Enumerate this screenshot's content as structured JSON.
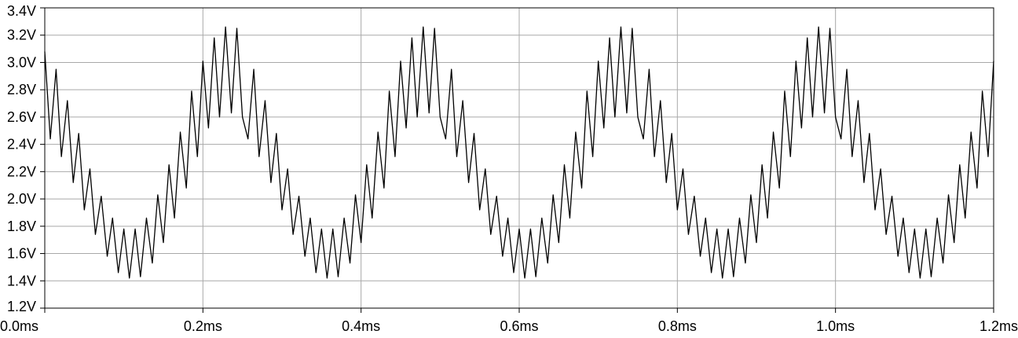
{
  "chart_data": {
    "type": "line",
    "title": "",
    "xlabel": "",
    "ylabel": "",
    "xlim": [
      0,
      1.2
    ],
    "ylim": [
      1.2,
      3.4
    ],
    "x_unit": "ms",
    "y_unit": "V",
    "grid": true,
    "x_ticks": [
      "0.0ms",
      "0.2ms",
      "0.4ms",
      "0.6ms",
      "0.8ms",
      "1.0ms",
      "1.2ms"
    ],
    "y_ticks": [
      "1.2V",
      "1.4V",
      "1.6V",
      "1.8V",
      "2.0V",
      "2.2V",
      "2.4V",
      "2.6V",
      "2.8V",
      "3.0V",
      "3.2V",
      "3.4V"
    ],
    "series": [
      {
        "color": "#000000",
        "description_of_shape": "sine envelope plus sawtooth ripple",
        "baseline_sine": {
          "offset_v": 2.13,
          "amplitude_v": 0.6,
          "period_ms": 0.25,
          "peak_at_ms": 0.225
        },
        "ripple_sawtooth": {
          "peak_to_peak_v": 0.72,
          "period_ms": 0.0143
        },
        "x": [
          0.0,
          0.007,
          0.0143,
          0.021,
          0.0286,
          0.036,
          0.0429,
          0.05,
          0.0571,
          0.064,
          0.0714,
          0.079,
          0.0857,
          0.093,
          0.1,
          0.107,
          0.1143,
          0.121,
          0.1286,
          0.136,
          0.1429,
          0.15,
          0.1571,
          0.164,
          0.1714,
          0.179,
          0.1857,
          0.193,
          0.2,
          0.207,
          0.2143,
          0.221,
          0.2286,
          0.236,
          0.2429,
          0.25
        ],
        "y": [
          3.08,
          2.44,
          2.95,
          2.31,
          2.72,
          2.12,
          2.48,
          1.92,
          2.22,
          1.74,
          2.02,
          1.58,
          1.86,
          1.46,
          1.78,
          1.42,
          1.78,
          1.43,
          1.86,
          1.53,
          2.03,
          1.68,
          2.25,
          1.86,
          2.49,
          2.08,
          2.79,
          2.31,
          3.01,
          2.52,
          3.18,
          2.6,
          3.26,
          2.63,
          3.25,
          2.6
        ]
      }
    ]
  }
}
